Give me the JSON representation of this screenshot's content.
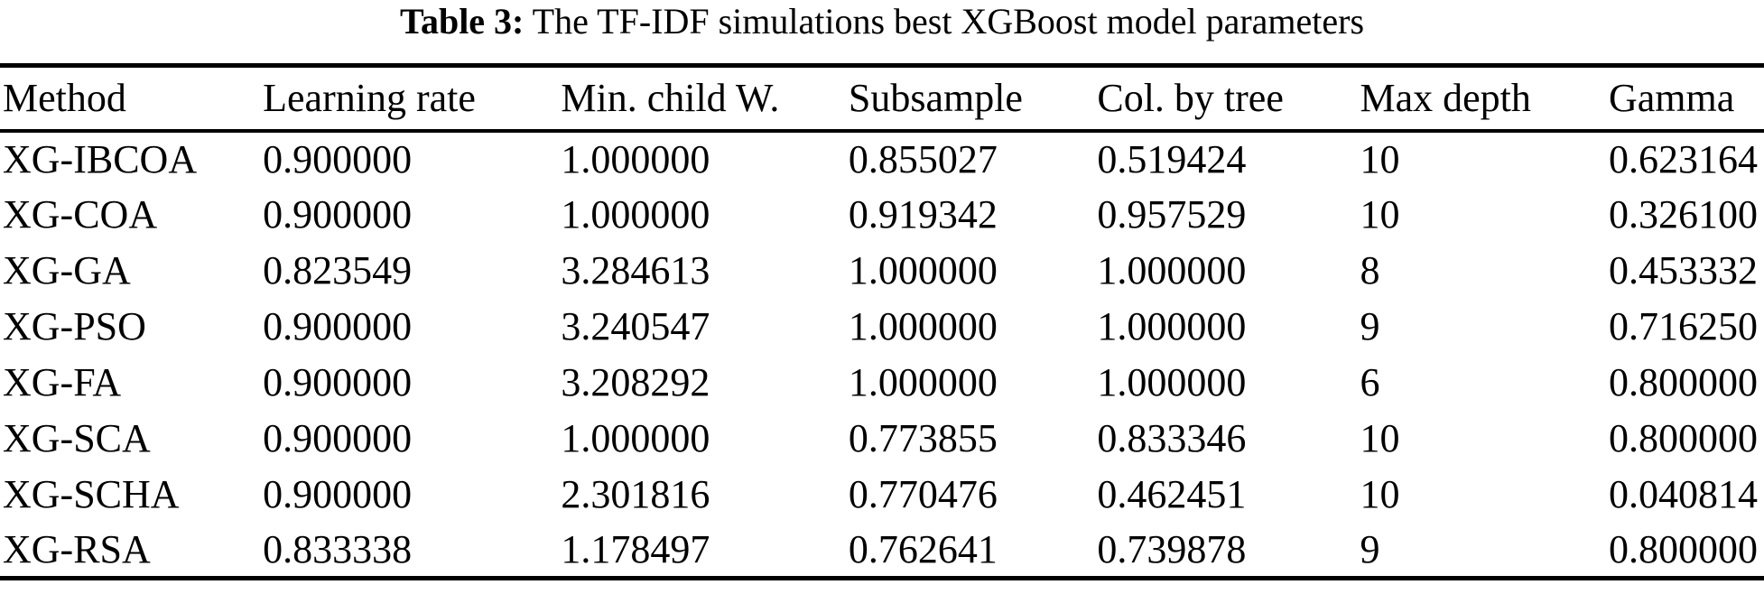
{
  "page": {
    "background_color": "#ffffff",
    "text_color": "#000000"
  },
  "caption": {
    "label": "Table 3:",
    "text": " The TF-IDF simulations best XGBoost model parameters"
  },
  "table": {
    "headers": [
      "Method",
      "Learning rate",
      "Min. child W.",
      "Subsample",
      "Col. by tree",
      "Max depth",
      "Gamma"
    ],
    "rows": [
      [
        "XG-IBCOA",
        "0.900000",
        "1.000000",
        "0.855027",
        "0.519424",
        "10",
        "0.623164"
      ],
      [
        "XG-COA",
        "0.900000",
        "1.000000",
        "0.919342",
        "0.957529",
        "10",
        "0.326100"
      ],
      [
        "XG-GA",
        "0.823549",
        "3.284613",
        "1.000000",
        "1.000000",
        "8",
        "0.453332"
      ],
      [
        "XG-PSO",
        "0.900000",
        "3.240547",
        "1.000000",
        "1.000000",
        "9",
        "0.716250"
      ],
      [
        "XG-FA",
        "0.900000",
        "3.208292",
        "1.000000",
        "1.000000",
        "6",
        "0.800000"
      ],
      [
        "XG-SCA",
        "0.900000",
        "1.000000",
        "0.773855",
        "0.833346",
        "10",
        "0.800000"
      ],
      [
        "XG-SCHA",
        "0.900000",
        "2.301816",
        "0.770476",
        "0.462451",
        "10",
        "0.040814"
      ],
      [
        "XG-RSA",
        "0.833338",
        "1.178497",
        "0.762641",
        "0.739878",
        "9",
        "0.800000"
      ]
    ]
  }
}
